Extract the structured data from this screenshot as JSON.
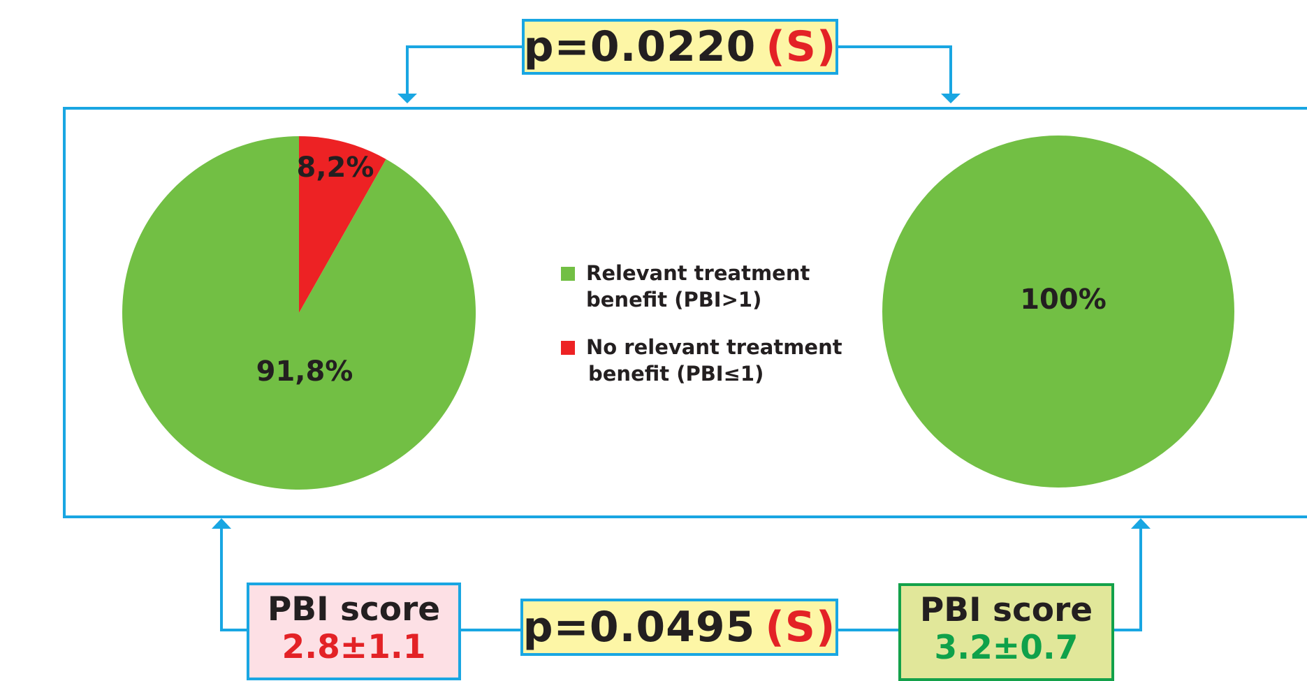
{
  "chart_data": [
    {
      "type": "pie",
      "slices": [
        {
          "label": "Relevant treatment benefit (PBI>1)",
          "value": 91.8,
          "value_label": "91,8%",
          "color": "#72bf44"
        },
        {
          "label": "No relevant treatment benefit (PBI≤1)",
          "value": 8.2,
          "value_label": "8,2%",
          "color": "#ed2224"
        }
      ]
    },
    {
      "type": "pie",
      "slices": [
        {
          "label": "Relevant treatment benefit (PBI>1)",
          "value": 100,
          "value_label": "100%",
          "color": "#72bf44"
        }
      ]
    }
  ],
  "legend": {
    "placement": "center",
    "items": [
      {
        "line1": "Relevant treatment",
        "line2": "benefit (PBI>1)",
        "color": "#72bf44"
      },
      {
        "line1": "No relevant treatment",
        "line2": "benefit (PBI≤1)",
        "color": "#ed2224"
      }
    ]
  },
  "comparisons": {
    "top": {
      "p_text": "p=0.0220",
      "sig": "(S)"
    },
    "bottom": {
      "p_text": "p=0.0495",
      "sig": "(S)"
    }
  },
  "scores": {
    "left": {
      "label": "PBI score",
      "value": "2.8±1.1",
      "value_color": "#e32226",
      "bg": "#fde0e5",
      "border": "#19a6e2"
    },
    "right": {
      "label": "PBI score",
      "value": "3.2±0.7",
      "value_color": "#0fa14a",
      "bg": "#e1e79a",
      "border": "#13a14a"
    }
  },
  "colors": {
    "frame": "#19a6e2",
    "text": "#231f20"
  }
}
